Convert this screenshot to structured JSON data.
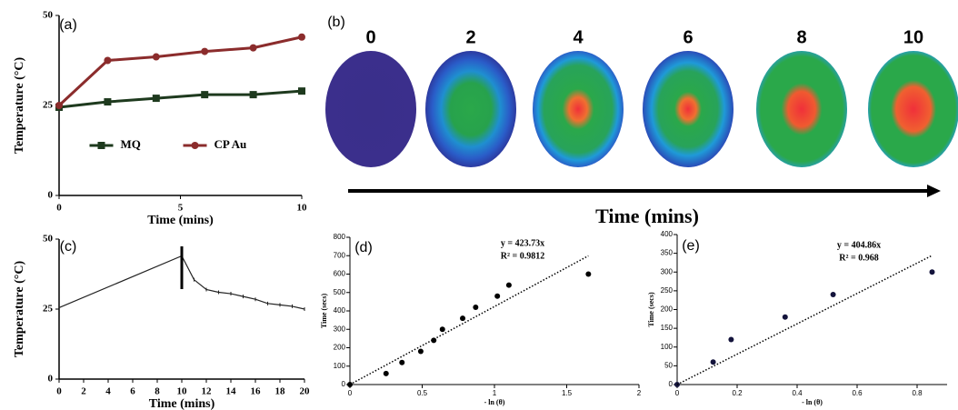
{
  "chart_data": [
    {
      "type": "line",
      "label": "(a)",
      "xlabel": "Time (mins)",
      "ylabel": "Temperature (°C)",
      "x": [
        0,
        2,
        4,
        6,
        8,
        10
      ],
      "series": [
        {
          "name": "MQ",
          "color": "#1e3a1e",
          "marker": "square",
          "values": [
            24.5,
            26,
            27,
            28,
            28,
            29
          ]
        },
        {
          "name": "CP Au",
          "color": "#8b2c2c",
          "marker": "circle",
          "values": [
            25,
            37.5,
            38.5,
            40,
            41,
            44
          ]
        }
      ],
      "xlim": [
        0,
        10
      ],
      "xticks": [
        0,
        5,
        10
      ],
      "ylim": [
        0,
        50
      ],
      "yticks": [
        0,
        25,
        50
      ],
      "legend": "lower center"
    },
    {
      "type": "image-sequence",
      "label": "(b)",
      "categories": [
        "0",
        "2",
        "4",
        "6",
        "8",
        "10"
      ],
      "xlabel": "Time (mins)"
    },
    {
      "type": "line",
      "label": "(c)",
      "xlabel": "Time (mins)",
      "ylabel": "Temperature (°C)",
      "x": [
        0,
        10,
        11,
        12,
        13,
        14,
        15,
        16,
        17,
        18,
        19,
        20
      ],
      "values": [
        25.5,
        44,
        35.5,
        32,
        31,
        30.5,
        29.5,
        28.5,
        27,
        26.5,
        26,
        25
      ],
      "color": "#222222",
      "xlim": [
        0,
        20
      ],
      "xticks": [
        0,
        2,
        4,
        6,
        8,
        10,
        12,
        14,
        16,
        18,
        20
      ],
      "ylim": [
        0,
        50
      ],
      "yticks": [
        0,
        25,
        50
      ]
    },
    {
      "type": "scatter",
      "label": "(d)",
      "xlabel": "- ln (θ)",
      "ylabel": "Time (secs)",
      "x": [
        0,
        0.25,
        0.36,
        0.49,
        0.58,
        0.64,
        0.78,
        0.87,
        1.02,
        1.1,
        1.65
      ],
      "values": [
        0,
        60,
        120,
        180,
        240,
        300,
        360,
        420,
        480,
        540,
        600
      ],
      "color": "#000000",
      "trendline_slope": 423.73,
      "annotations": [
        "y = 423.73x",
        "R² = 0.9812"
      ],
      "xlim": [
        0,
        2
      ],
      "xticks": [
        0,
        0.5,
        1,
        1.5,
        2
      ],
      "ylim": [
        0,
        800
      ],
      "yticks": [
        0,
        100,
        200,
        300,
        400,
        500,
        600,
        700,
        800
      ]
    },
    {
      "type": "scatter",
      "label": "(e)",
      "xlabel": "- ln (θ)",
      "ylabel": "Time (secs)",
      "x": [
        0,
        0.12,
        0.18,
        0.36,
        0.52,
        0.85
      ],
      "values": [
        0,
        60,
        120,
        180,
        240,
        300
      ],
      "color": "#14143c",
      "trendline_slope": 404.86,
      "annotations": [
        "y = 404.86x",
        "R² = 0.968"
      ],
      "xlim": [
        0,
        0.9
      ],
      "xticks": [
        0,
        0.2,
        0.4,
        0.6,
        0.8
      ],
      "ylim": [
        0,
        400
      ],
      "yticks": [
        0,
        50,
        100,
        150,
        200,
        250,
        300,
        350,
        400
      ]
    }
  ]
}
